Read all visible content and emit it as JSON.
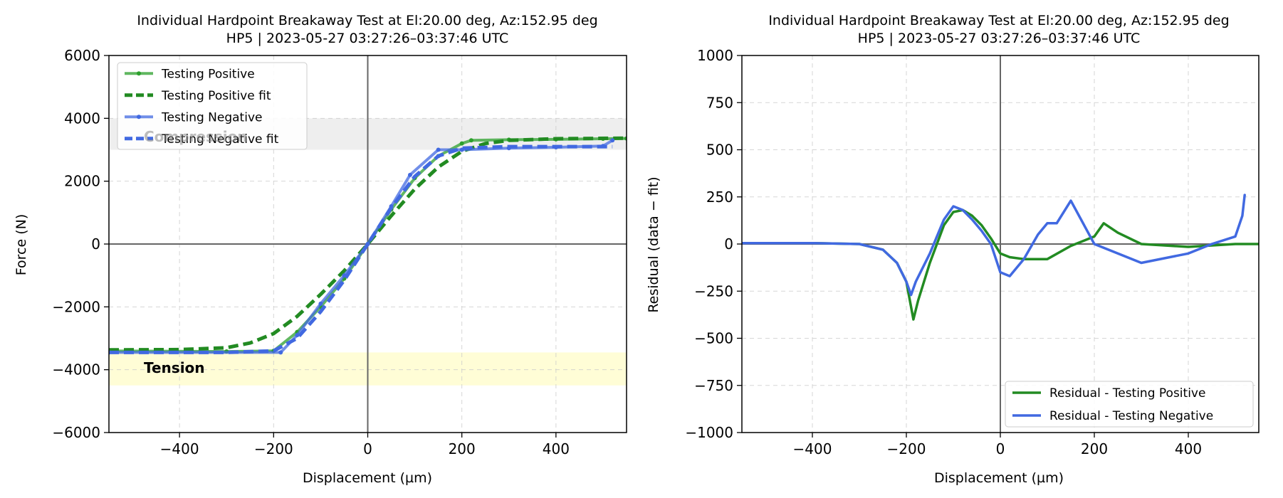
{
  "chart_data": [
    {
      "type": "line",
      "title": "Individual Hardpoint Breakaway Test at El:20.00 deg, Az:152.95 deg",
      "subtitle": "HP5 | 2023-05-27 03:27:26–03:37:46 UTC",
      "xlabel": "Displacement (µm)",
      "ylabel": "Force (N)",
      "xlim": [
        -550,
        550
      ],
      "ylim": [
        -6000,
        6000
      ],
      "xticks": [
        -400,
        -200,
        0,
        200,
        400
      ],
      "yticks": [
        -6000,
        -4000,
        -2000,
        0,
        2000,
        4000,
        6000
      ],
      "xtick_labels": [
        "−400",
        "−200",
        "0",
        "200",
        "400"
      ],
      "ytick_labels": [
        "−6000",
        "−4000",
        "−2000",
        "0",
        "2000",
        "4000",
        "6000"
      ],
      "grid": true,
      "legend": "upper-left",
      "bands": [
        {
          "label": "Compression",
          "y0": 3000,
          "y1": 4000,
          "color": "#eeeeee"
        },
        {
          "label": "Tension",
          "y0": -4500,
          "y1": -3450,
          "color": "#fffdd6"
        }
      ],
      "series": [
        {
          "name": "Testing Positive",
          "color": "#2ca02c",
          "style": "solid-marker",
          "x": [
            -550,
            -300,
            -200,
            -150,
            -100,
            -50,
            0,
            50,
            100,
            150,
            200,
            220,
            300,
            400,
            500,
            550
          ],
          "y": [
            -3400,
            -3420,
            -3400,
            -2800,
            -2000,
            -1100,
            0,
            1100,
            2100,
            2800,
            3200,
            3300,
            3320,
            3330,
            3350,
            3360
          ]
        },
        {
          "name": "Testing Positive fit",
          "color": "#228b22",
          "style": "dashed",
          "x": [
            -550,
            -400,
            -300,
            -250,
            -200,
            -150,
            -100,
            -50,
            0,
            50,
            100,
            150,
            200,
            250,
            300,
            400,
            550
          ],
          "y": [
            -3370,
            -3360,
            -3300,
            -3150,
            -2850,
            -2300,
            -1600,
            -850,
            0,
            900,
            1750,
            2450,
            2950,
            3200,
            3300,
            3350,
            3370
          ]
        },
        {
          "name": "Testing Negative",
          "color": "#4169e1",
          "style": "solid-marker",
          "x": [
            -550,
            -185,
            -150,
            -100,
            -50,
            0,
            50,
            90,
            150,
            200,
            300,
            400,
            500,
            520
          ],
          "y": [
            -3450,
            -3450,
            -2900,
            -1900,
            -1000,
            0,
            1200,
            2200,
            3000,
            3000,
            3050,
            3080,
            3120,
            3300
          ]
        },
        {
          "name": "Testing Negative fit",
          "color": "#4169e1",
          "style": "dashed",
          "x": [
            -550,
            -300,
            -200,
            -150,
            -100,
            -50,
            0,
            50,
            100,
            150,
            200,
            300,
            400,
            520
          ],
          "y": [
            -3450,
            -3450,
            -3400,
            -3000,
            -2150,
            -1150,
            0,
            1150,
            2150,
            2800,
            3050,
            3100,
            3100,
            3100
          ]
        }
      ]
    },
    {
      "type": "line",
      "title": "Individual Hardpoint Breakaway Test at El:20.00 deg, Az:152.95 deg",
      "subtitle": "HP5 | 2023-05-27 03:27:26–03:37:46 UTC",
      "xlabel": "Displacement (µm)",
      "ylabel": "Residual (data − fit)",
      "xlim": [
        -550,
        550
      ],
      "ylim": [
        -1000,
        1000
      ],
      "xticks": [
        -400,
        -200,
        0,
        200,
        400
      ],
      "yticks": [
        -1000,
        -750,
        -500,
        -250,
        0,
        250,
        500,
        750,
        1000
      ],
      "xtick_labels": [
        "−400",
        "−200",
        "0",
        "200",
        "400"
      ],
      "ytick_labels": [
        "−1000",
        "−750",
        "−500",
        "−250",
        "0",
        "250",
        "500",
        "750",
        "1000"
      ],
      "grid": true,
      "legend": "lower-right",
      "series": [
        {
          "name": "Residual - Testing Positive",
          "color": "#228b22",
          "x": [
            -550,
            -400,
            -300,
            -250,
            -220,
            -200,
            -185,
            -175,
            -150,
            -120,
            -100,
            -80,
            -60,
            -40,
            -20,
            0,
            20,
            50,
            100,
            150,
            200,
            220,
            250,
            300,
            400,
            500,
            550
          ],
          "y": [
            5,
            5,
            0,
            -30,
            -100,
            -200,
            -400,
            -300,
            -100,
            100,
            170,
            180,
            150,
            100,
            30,
            -50,
            -70,
            -80,
            -80,
            -10,
            40,
            110,
            60,
            0,
            -15,
            0,
            0
          ]
        },
        {
          "name": "Residual - Testing Negative",
          "color": "#4169e1",
          "x": [
            -550,
            -400,
            -300,
            -250,
            -220,
            -200,
            -190,
            -180,
            -150,
            -120,
            -100,
            -80,
            -60,
            -40,
            -20,
            0,
            20,
            50,
            80,
            100,
            120,
            150,
            200,
            300,
            400,
            450,
            500,
            515,
            520
          ],
          "y": [
            5,
            5,
            0,
            -30,
            -100,
            -200,
            -270,
            -200,
            -50,
            130,
            200,
            180,
            130,
            70,
            0,
            -150,
            -170,
            -80,
            50,
            110,
            110,
            230,
            0,
            -100,
            -50,
            0,
            40,
            150,
            260
          ]
        }
      ]
    }
  ]
}
